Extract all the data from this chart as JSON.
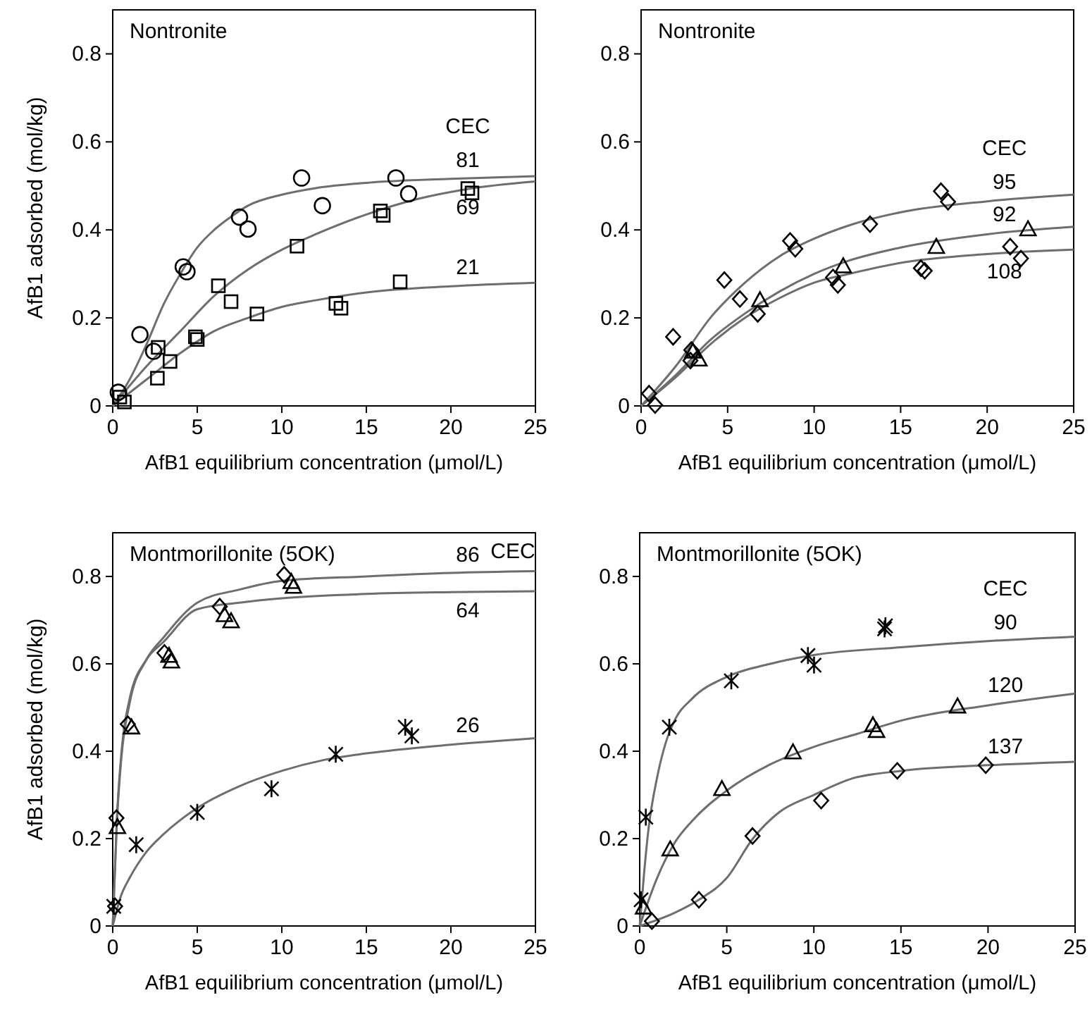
{
  "chart_data": [
    {
      "type": "scatter",
      "title": "Nontronite",
      "legend_title": "CEC",
      "xlabel": "AfB1 equilibrium concentration (μmol/L)",
      "ylabel": "AfB1 adsorbed (mol/kg)",
      "xlim": [
        0,
        25
      ],
      "ylim": [
        0,
        0.9
      ],
      "xticks": [
        0,
        5,
        10,
        15,
        20,
        25
      ],
      "yticks": [
        0,
        0.2,
        0.4,
        0.6,
        0.8
      ],
      "series": [
        {
          "marker": "circle",
          "color": "#000000",
          "x": [
            0.33,
            1.61,
            2.42,
            4.17,
            4.39,
            7.5,
            8.0,
            11.17,
            12.4,
            16.75,
            17.5
          ],
          "values": [
            0.031,
            0.162,
            0.124,
            0.316,
            0.305,
            0.429,
            0.402,
            0.518,
            0.455,
            0.518,
            0.482
          ]
        },
        {
          "marker": "square",
          "color": "#000000",
          "x": [
            0.42,
            2.69,
            3.39,
            6.25,
            7.0,
            10.9,
            15.83,
            16.0,
            21.0,
            21.25
          ],
          "values": [
            0.02,
            0.133,
            0.101,
            0.273,
            0.237,
            0.363,
            0.443,
            0.433,
            0.494,
            0.484
          ]
        },
        {
          "marker": "square",
          "color": "#000000",
          "x": [
            0.69,
            2.64,
            4.89,
            5.0,
            8.53,
            13.2,
            13.5,
            17.0
          ],
          "values": [
            0.009,
            0.063,
            0.157,
            0.151,
            0.209,
            0.233,
            0.222,
            0.282
          ]
        },
        {
          "type": "line",
          "name": "81",
          "color": "#6e6e6e",
          "x": [
            0,
            1,
            2,
            3,
            4,
            5,
            6,
            7,
            8,
            10,
            12,
            15,
            20,
            25
          ],
          "values": [
            0,
            0.06,
            0.14,
            0.23,
            0.3,
            0.36,
            0.4,
            0.43,
            0.455,
            0.48,
            0.495,
            0.507,
            0.516,
            0.522
          ]
        },
        {
          "type": "line",
          "name": "69",
          "color": "#6e6e6e",
          "x": [
            0,
            2,
            4,
            6,
            8,
            10,
            12,
            15,
            18,
            21,
            25
          ],
          "values": [
            0,
            0.09,
            0.17,
            0.25,
            0.31,
            0.355,
            0.39,
            0.435,
            0.47,
            0.493,
            0.51
          ]
        },
        {
          "type": "line",
          "name": "21",
          "color": "#6e6e6e",
          "x": [
            0,
            2,
            4,
            6,
            8,
            10,
            12,
            15,
            20,
            25
          ],
          "values": [
            0,
            0.06,
            0.12,
            0.17,
            0.2,
            0.225,
            0.24,
            0.258,
            0.272,
            0.28
          ]
        }
      ]
    },
    {
      "type": "scatter",
      "title": "Nontronite",
      "legend_title": "CEC",
      "xlabel": "AfB1 equilibrium concentration (μmol/L)",
      "xlim": [
        0,
        25
      ],
      "ylim": [
        0,
        0.9
      ],
      "xticks": [
        0,
        5,
        10,
        15,
        20,
        25
      ],
      "yticks": [
        0,
        0.2,
        0.4,
        0.6,
        0.8
      ],
      "series": [
        {
          "marker": "diamond",
          "color": "#000000",
          "x": [
            0.46,
            1.85,
            2.9,
            4.81,
            5.71,
            8.61,
            8.91,
            13.23,
            17.33,
            17.74
          ],
          "values": [
            0.028,
            0.157,
            0.127,
            0.286,
            0.243,
            0.375,
            0.357,
            0.413,
            0.488,
            0.464
          ]
        },
        {
          "marker": "triangle",
          "color": "#000000",
          "x": [
            2.99,
            3.34,
            6.87,
            11.68,
            17.06,
            22.36
          ],
          "values": [
            0.124,
            0.106,
            0.241,
            0.318,
            0.362,
            0.402
          ]
        },
        {
          "marker": "diamond",
          "color": "#000000",
          "x": [
            0.81,
            2.85,
            6.74,
            11.09,
            11.37,
            16.17,
            16.39,
            21.33,
            21.95
          ],
          "values": [
            0.002,
            0.103,
            0.209,
            0.292,
            0.275,
            0.313,
            0.307,
            0.362,
            0.335
          ]
        },
        {
          "type": "line",
          "name": "95",
          "color": "#6e6e6e",
          "x": [
            0,
            2,
            4,
            6,
            8,
            10,
            12,
            15,
            20,
            25
          ],
          "values": [
            0,
            0.09,
            0.2,
            0.28,
            0.34,
            0.38,
            0.41,
            0.44,
            0.465,
            0.48
          ]
        },
        {
          "type": "line",
          "name": "92",
          "color": "#6e6e6e",
          "x": [
            0,
            2,
            4,
            6,
            8,
            10,
            12,
            15,
            20,
            25
          ],
          "values": [
            0,
            0.07,
            0.15,
            0.21,
            0.26,
            0.3,
            0.33,
            0.36,
            0.39,
            0.407
          ]
        },
        {
          "type": "line",
          "name": "108",
          "color": "#6e6e6e",
          "x": [
            0,
            2,
            4,
            6,
            8,
            10,
            12,
            15,
            20,
            25
          ],
          "values": [
            0,
            0.065,
            0.14,
            0.2,
            0.245,
            0.28,
            0.3,
            0.325,
            0.345,
            0.355
          ]
        }
      ]
    },
    {
      "type": "scatter",
      "title": "Montmorillonite (5OK)",
      "legend_title": "CEC",
      "xlabel": "AfB1 equilibrium concentration (μmol/L)",
      "ylabel": "AfB1 adsorbed (mol/kg)",
      "xlim": [
        0,
        25
      ],
      "ylim": [
        0,
        0.9
      ],
      "xticks": [
        0,
        5,
        10,
        15,
        20,
        25
      ],
      "yticks": [
        0,
        0.2,
        0.4,
        0.6,
        0.8
      ],
      "series": [
        {
          "marker": "diamond",
          "color": "#000000",
          "x": [
            0.14,
            0.22,
            0.89,
            3.06,
            6.33,
            10.14
          ],
          "values": [
            0.045,
            0.247,
            0.462,
            0.625,
            0.731,
            0.804
          ]
        },
        {
          "marker": "triangle",
          "color": "#000000",
          "x": [
            0.28,
            1.11,
            3.33,
            3.47,
            6.61,
            7.0,
            10.56,
            10.69
          ],
          "values": [
            0.227,
            0.455,
            0.619,
            0.606,
            0.712,
            0.698,
            0.788,
            0.777
          ]
        },
        {
          "marker": "cross",
          "color": "#000000",
          "x": [
            0.06,
            1.39,
            5.0,
            9.39,
            13.19,
            17.3,
            17.69
          ],
          "values": [
            0.045,
            0.186,
            0.26,
            0.314,
            0.393,
            0.455,
            0.435
          ]
        },
        {
          "type": "line",
          "name": "86",
          "color": "#6e6e6e",
          "x": [
            0,
            0.25,
            0.5,
            1,
            2,
            3,
            5,
            7.5,
            10,
            15,
            20,
            25
          ],
          "values": [
            0,
            0.24,
            0.38,
            0.51,
            0.61,
            0.66,
            0.74,
            0.77,
            0.79,
            0.8,
            0.808,
            0.812
          ]
        },
        {
          "type": "line",
          "name": "64",
          "color": "#6e6e6e",
          "x": [
            0,
            0.25,
            0.5,
            1,
            2,
            3,
            5,
            7.5,
            10,
            15,
            20,
            25
          ],
          "values": [
            0,
            0.25,
            0.39,
            0.52,
            0.61,
            0.65,
            0.725,
            0.74,
            0.75,
            0.76,
            0.764,
            0.766
          ]
        },
        {
          "type": "line",
          "name": "26",
          "color": "#6e6e6e",
          "x": [
            0,
            0.5,
            1,
            2,
            3,
            5,
            7.5,
            10,
            12.5,
            15,
            20,
            25
          ],
          "values": [
            0,
            0.07,
            0.11,
            0.17,
            0.21,
            0.27,
            0.32,
            0.355,
            0.38,
            0.395,
            0.415,
            0.43
          ]
        }
      ]
    },
    {
      "type": "scatter",
      "title": "Montmorillonite (5OK)",
      "legend_title": "CEC",
      "xlabel": "AfB1 equilibrium concentration (μmol/L)",
      "xlim": [
        0,
        25
      ],
      "ylim": [
        0,
        0.9
      ],
      "xticks": [
        0,
        5,
        10,
        15,
        20,
        25
      ],
      "yticks": [
        0,
        0.2,
        0.4,
        0.6,
        0.8
      ],
      "series": [
        {
          "marker": "cross",
          "color": "#000000",
          "x": [
            0.08,
            0.35,
            1.7,
            5.26,
            9.66,
            10.01,
            14.06,
            14.11
          ],
          "values": [
            0.06,
            0.249,
            0.455,
            0.561,
            0.619,
            0.597,
            0.68,
            0.687
          ]
        },
        {
          "marker": "triangle",
          "color": "#000000",
          "x": [
            0.22,
            1.75,
            4.72,
            8.8,
            13.39,
            13.6,
            18.25
          ],
          "values": [
            0.043,
            0.176,
            0.314,
            0.398,
            0.46,
            0.447,
            0.503
          ]
        },
        {
          "marker": "diamond",
          "color": "#000000",
          "x": [
            0.7,
            3.4,
            6.48,
            10.42,
            14.79,
            19.87
          ],
          "values": [
            0.011,
            0.06,
            0.206,
            0.287,
            0.355,
            0.368
          ]
        },
        {
          "type": "line",
          "name": "90",
          "color": "#6e6e6e",
          "x": [
            0,
            0.25,
            0.5,
            1,
            1.5,
            2,
            3,
            5,
            7.5,
            10,
            15,
            20,
            25
          ],
          "values": [
            0,
            0.12,
            0.22,
            0.34,
            0.42,
            0.47,
            0.52,
            0.57,
            0.6,
            0.62,
            0.638,
            0.652,
            0.662
          ]
        },
        {
          "type": "line",
          "name": "120",
          "color": "#6e6e6e",
          "x": [
            0,
            1,
            2,
            3,
            5,
            7.5,
            10,
            12.5,
            15,
            20,
            25
          ],
          "values": [
            0,
            0.11,
            0.19,
            0.24,
            0.31,
            0.37,
            0.41,
            0.44,
            0.47,
            0.505,
            0.532
          ]
        },
        {
          "type": "line",
          "name": "137",
          "color": "#6e6e6e",
          "x": [
            0,
            2,
            3.4,
            5,
            6.5,
            8,
            10,
            12,
            15,
            20,
            25
          ],
          "values": [
            0,
            0.03,
            0.06,
            0.11,
            0.2,
            0.26,
            0.3,
            0.335,
            0.355,
            0.368,
            0.376
          ]
        }
      ]
    }
  ]
}
